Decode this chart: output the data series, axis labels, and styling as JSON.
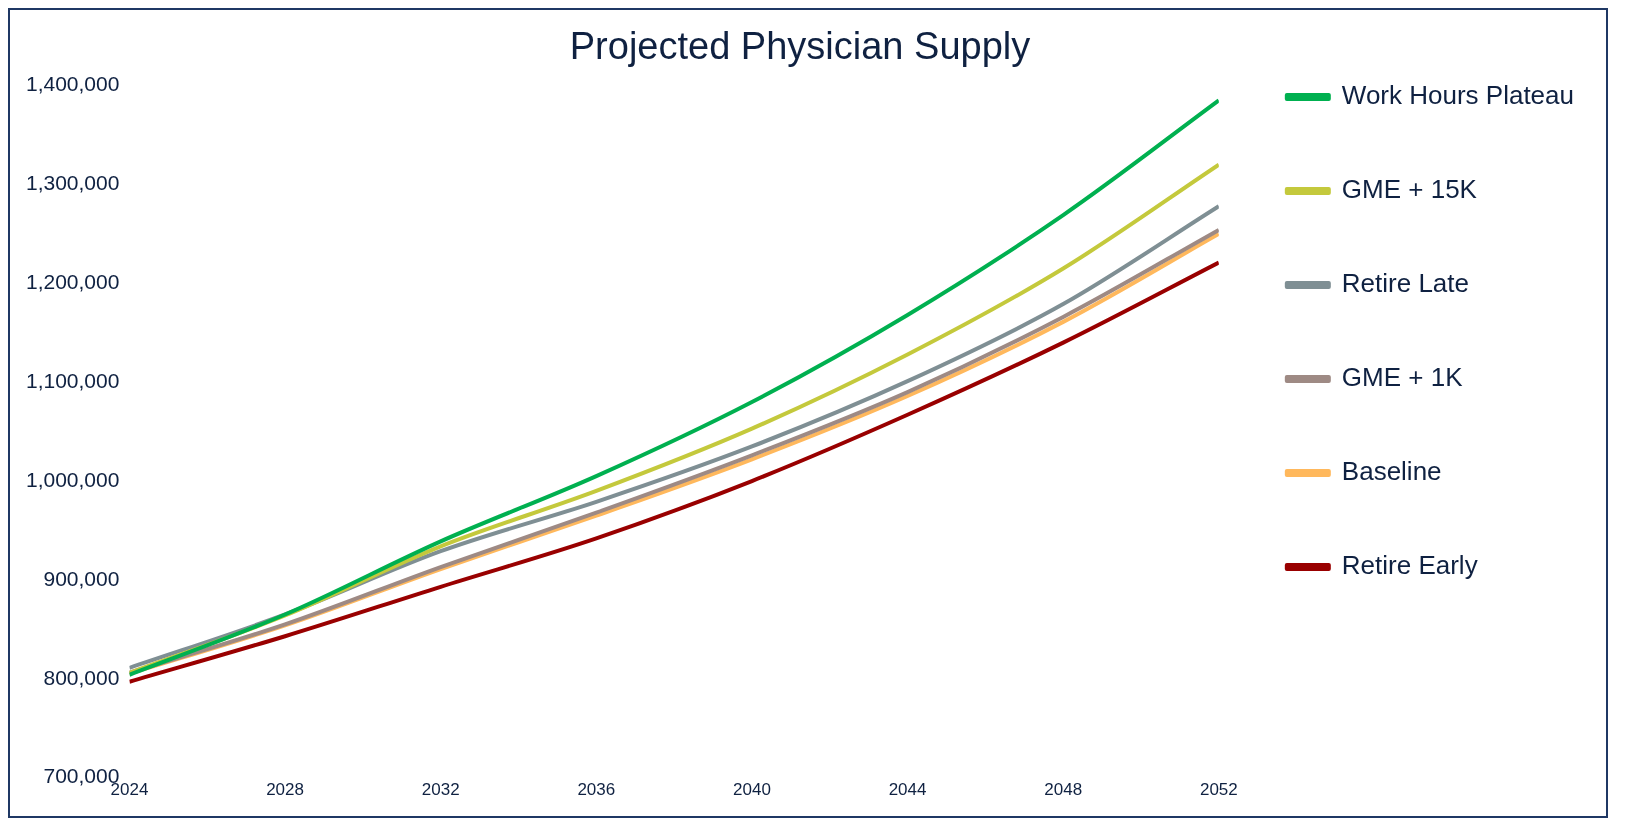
{
  "chart_data": {
    "type": "line",
    "title": "Projected Physician Supply",
    "x": [
      2024,
      2028,
      2032,
      2036,
      2040,
      2044,
      2048,
      2052
    ],
    "series": [
      {
        "name": "Work Hours Plateau",
        "color": "#00b050",
        "values": [
          804000,
          865000,
          939000,
          1005000,
          1080000,
          1168000,
          1269000,
          1385000
        ]
      },
      {
        "name": "GME + 15K",
        "color": "#c4c93c",
        "values": [
          806000,
          864000,
          934000,
          990000,
          1053000,
          1128000,
          1215000,
          1320000
        ]
      },
      {
        "name": "Retire Late",
        "color": "#7f8f94",
        "values": [
          811000,
          865000,
          929000,
          979000,
          1035000,
          1101000,
          1179000,
          1278000
        ]
      },
      {
        "name": "GME + 1K",
        "color": "#9e8a84",
        "values": [
          806000,
          855000,
          913000,
          968000,
          1026000,
          1090000,
          1166000,
          1254000
        ]
      },
      {
        "name": "Baseline",
        "color": "#ffb85c",
        "values": [
          805000,
          854000,
          911000,
          965000,
          1022000,
          1086000,
          1161000,
          1250000
        ]
      },
      {
        "name": "Retire Early",
        "color": "#990000",
        "values": [
          797000,
          843000,
          893000,
          942000,
          1000000,
          1067000,
          1140000,
          1221000
        ]
      }
    ],
    "xlim": [
      2024,
      2052
    ],
    "xticks": [
      2024,
      2028,
      2032,
      2036,
      2040,
      2044,
      2048,
      2052
    ],
    "ylim": [
      700000,
      1400000
    ],
    "yticks": [
      {
        "value": 700000,
        "label": "700,000"
      },
      {
        "value": 800000,
        "label": "800,000"
      },
      {
        "value": 900000,
        "label": "900,000"
      },
      {
        "value": 1000000,
        "label": "1,000,000"
      },
      {
        "value": 1100000,
        "label": "1,100,000"
      },
      {
        "value": 1200000,
        "label": "1,200,000"
      },
      {
        "value": 1300000,
        "label": "1,300,000"
      },
      {
        "value": 1400000,
        "label": "1,400,000"
      }
    ],
    "grid": false,
    "legend": "right",
    "marker": "none",
    "line_style": "solid"
  }
}
